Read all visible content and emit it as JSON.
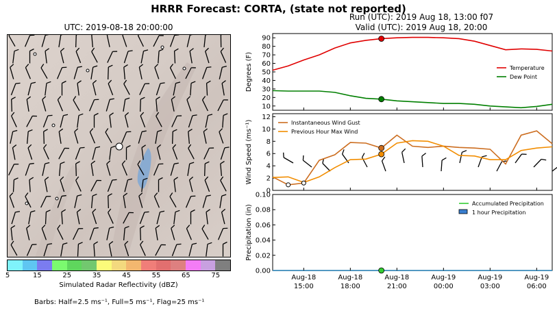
{
  "titles": {
    "main": "HRRR Forecast: CORTA, (state not reported)",
    "map": "UTC: 2019-08-18 20:00:00",
    "run": "Run (UTC): 2019 Aug 18, 13:00 f07",
    "valid": "Valid (UTC): 2019 Aug 18, 20:00"
  },
  "colorbar": {
    "label": "Simulated Radar Reflectivity (dBZ)",
    "ticks": [
      "5",
      "15",
      "25",
      "35",
      "45",
      "55",
      "65",
      "75"
    ],
    "colors": [
      "#7ff3fb",
      "#5fc6f2",
      "#7b7cf0",
      "#7bfa6f",
      "#5fd65d",
      "#72c86f",
      "#fbfb7a",
      "#f3d97e",
      "#f3b76f",
      "#f07e79",
      "#e26f6f",
      "#de8080",
      "#f47cf6",
      "#c8a0e0",
      "#7f7f7f"
    ]
  },
  "barb_note": "Barbs: Half=2.5 ms⁻¹, Full=5 ms⁻¹, Flag=25 ms⁻¹",
  "chart_data": [
    {
      "type": "line",
      "title": "",
      "ylabel": "Degrees (F)",
      "ylim": [
        5,
        95
      ],
      "yticks": [
        10,
        20,
        30,
        40,
        50,
        60,
        70,
        80,
        90
      ],
      "legend": "center-right",
      "x_hours": [
        13,
        14,
        15,
        16,
        17,
        18,
        19,
        20,
        21,
        22,
        23,
        24,
        25,
        26,
        27,
        28,
        29,
        30,
        31
      ],
      "series": [
        {
          "name": "Temperature",
          "color": "#e00000",
          "values": [
            52,
            57,
            64,
            70,
            78,
            84,
            87,
            89,
            90,
            90.5,
            90.5,
            90,
            89,
            86,
            81,
            76,
            77,
            76.5,
            74.5
          ]
        },
        {
          "name": "Dew Point",
          "color": "#007f00",
          "values": [
            28,
            27.5,
            27.5,
            27.5,
            26,
            22,
            19,
            18,
            16,
            15,
            14,
            13,
            13,
            12,
            10,
            9,
            8,
            9.5,
            12
          ]
        }
      ],
      "marker_hour": 20,
      "marker_values": [
        89,
        18
      ]
    },
    {
      "type": "line",
      "title": "",
      "ylabel": "Wind Speed (ms⁻¹)",
      "ylim": [
        0,
        12.5
      ],
      "yticks": [
        0,
        2,
        4,
        6,
        8,
        10,
        12
      ],
      "legend": "top-left",
      "x_hours": [
        13,
        14,
        15,
        16,
        17,
        18,
        19,
        20,
        21,
        22,
        23,
        24,
        25,
        26,
        27,
        28,
        29,
        30,
        31
      ],
      "series": [
        {
          "name": "Instantaneous Wind Gust",
          "color": "#cc6d1f",
          "values": [
            2.2,
            0.9,
            1.2,
            4.9,
            5.8,
            7.8,
            7.7,
            6.9,
            9.0,
            7.2,
            7.0,
            7.2,
            7.0,
            6.9,
            6.7,
            4.3,
            9.0,
            9.7,
            7.6
          ]
        },
        {
          "name": "Previous Hour Max Wind",
          "color": "#f28d00",
          "values": [
            2.1,
            2.2,
            1.3,
            2.2,
            3.7,
            5.0,
            5.1,
            5.9,
            7.7,
            8.1,
            8.0,
            7.2,
            5.7,
            5.6,
            5.0,
            5.0,
            6.5,
            6.9,
            7.1
          ]
        }
      ],
      "marker_hour": 20,
      "marker_values": [
        6.9,
        5.9
      ]
    },
    {
      "type": "line",
      "title": "",
      "ylabel": "Precipitation (in)",
      "ylim": [
        0,
        0.1
      ],
      "yticks": [
        "0.00",
        "0.02",
        "0.04",
        "0.06",
        "0.08",
        "0.10"
      ],
      "legend": "top-right",
      "x_hours": [
        13,
        31
      ],
      "series": [
        {
          "name": "Accumulated Precipitation",
          "color": "#33cc33",
          "values": [
            0,
            0
          ]
        },
        {
          "name": "1 hour Precipitation",
          "color": "#3a7fd0",
          "values": [
            0,
            0
          ]
        }
      ],
      "marker_hour": 20,
      "marker_values": [
        0
      ],
      "xtick_hours": [
        15,
        18,
        21,
        24,
        27,
        30
      ],
      "xtick_labels": [
        [
          "Aug-18",
          "15:00"
        ],
        [
          "Aug-18",
          "18:00"
        ],
        [
          "Aug-18",
          "21:00"
        ],
        [
          "Aug-19",
          "00:00"
        ],
        [
          "Aug-19",
          "03:00"
        ],
        [
          "Aug-19",
          "06:00"
        ]
      ]
    }
  ]
}
